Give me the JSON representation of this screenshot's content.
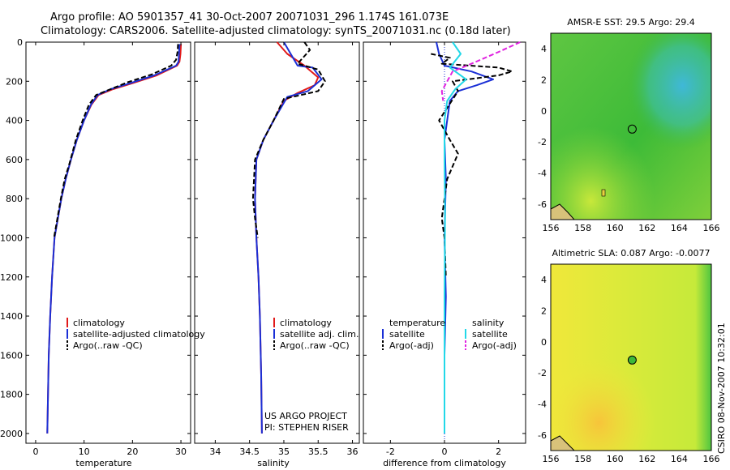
{
  "figure": {
    "title_line1": "Argo profile: AO 5901357_41 30-Oct-2007 20071031_296 1.174S 161.073E",
    "title_line2": "Climatology: CARS2006. Satellite-adjusted climatology: synTS_20071031.nc (0.18d later)",
    "credit": "CSIRO 08-Nov-2007 10:32:01",
    "project_line1": "US ARGO PROJECT",
    "project_line2": "PI: STEPHEN RISER"
  },
  "colors": {
    "climatology": "#e11a1a",
    "satellite": "#1a2fd6",
    "argo": "#000000",
    "satellite_salinity": "#22d8e8",
    "argo_salinity": "#e024e0"
  },
  "chart_data": [
    {
      "id": "temperature",
      "type": "line",
      "xlabel": "temperature",
      "ylabel": "",
      "xlim": [
        -2,
        32
      ],
      "ylim": [
        2050,
        0
      ],
      "xticks": [
        0,
        10,
        20,
        30
      ],
      "yticks": [
        0,
        200,
        400,
        600,
        800,
        1000,
        1200,
        1400,
        1600,
        1800,
        2000
      ],
      "legend": [
        "climatology",
        "satellite-adjusted climatology",
        "Argo(..raw -QC)"
      ],
      "series": [
        {
          "name": "climatology",
          "style": "solid",
          "color": "climatology",
          "x": [
            30.0,
            29.9,
            29.7,
            29.2,
            25,
            20,
            16,
            13,
            11.5,
            10,
            8.5,
            7.3,
            6.2,
            5.3,
            4.6,
            3.9,
            3.4,
            3.0,
            2.7,
            2.4
          ],
          "y": [
            10,
            60,
            100,
            120,
            170,
            210,
            240,
            270,
            320,
            400,
            500,
            600,
            700,
            800,
            900,
            1000,
            1200,
            1400,
            1600,
            2000
          ]
        },
        {
          "name": "satellite-adjusted climatology",
          "style": "solid",
          "color": "satellite",
          "x": [
            29.7,
            29.6,
            29.5,
            29.0,
            24.5,
            19.5,
            15.5,
            12.8,
            11.4,
            10,
            8.5,
            7.3,
            6.2,
            5.3,
            4.6,
            3.9,
            3.4,
            3.0,
            2.7,
            2.4
          ],
          "y": [
            10,
            60,
            100,
            120,
            170,
            210,
            240,
            270,
            320,
            400,
            500,
            600,
            700,
            800,
            900,
            1000,
            1200,
            1400,
            1600,
            2000
          ]
        },
        {
          "name": "Argo(..raw -QC)",
          "style": "dashed",
          "color": "argo",
          "x": [
            29.4,
            29.3,
            29.0,
            28.0,
            24,
            19,
            15.5,
            12.5,
            11.0,
            9.7,
            8.3,
            7.0,
            6.0,
            5.2,
            4.5,
            3.8
          ],
          "y": [
            10,
            50,
            90,
            120,
            165,
            205,
            240,
            270,
            320,
            400,
            500,
            620,
            700,
            800,
            900,
            1000
          ]
        }
      ]
    },
    {
      "id": "salinity",
      "type": "line",
      "xlabel": "salinity",
      "ylabel": "",
      "xlim": [
        33.7,
        36.1
      ],
      "ylim": [
        2050,
        0
      ],
      "xticks": [
        34,
        34.5,
        35,
        35.5,
        36
      ],
      "yticks": [],
      "legend": [
        "climatology",
        "satellite adj. clim.",
        "Argo(..raw -QC)"
      ],
      "series": [
        {
          "name": "climatology",
          "style": "solid",
          "color": "climatology",
          "x": [
            34.9,
            35.05,
            35.3,
            35.5,
            35.45,
            35.2,
            35.0,
            34.85,
            34.7,
            34.6,
            34.58,
            34.6,
            34.63,
            34.65,
            34.67,
            34.68
          ],
          "y": [
            0,
            60,
            120,
            180,
            220,
            260,
            300,
            400,
            500,
            600,
            800,
            1000,
            1200,
            1400,
            1700,
            2000
          ]
        },
        {
          "name": "satellite adj. clim.",
          "style": "solid",
          "color": "satellite",
          "x": [
            35.0,
            35.1,
            35.2,
            35.42,
            35.55,
            35.35,
            35.05,
            34.85,
            34.7,
            34.6,
            34.58,
            34.6,
            34.63,
            34.65,
            34.67,
            34.68
          ],
          "y": [
            0,
            60,
            120,
            130,
            190,
            250,
            280,
            400,
            500,
            600,
            800,
            1000,
            1200,
            1400,
            1700,
            2000
          ]
        },
        {
          "name": "Argo(..raw -QC)",
          "style": "dashed",
          "color": "argo",
          "x": [
            35.3,
            35.38,
            35.2,
            35.5,
            35.6,
            35.5,
            35.0,
            34.85,
            34.7,
            34.58,
            34.55,
            34.58,
            34.62
          ],
          "y": [
            0,
            40,
            110,
            140,
            200,
            250,
            290,
            400,
            500,
            600,
            800,
            900,
            1000
          ]
        }
      ]
    },
    {
      "id": "difference",
      "type": "line",
      "xlabel": "difference from climatology",
      "ylabel": "",
      "xlim": [
        -3,
        3
      ],
      "ylim": [
        2050,
        0
      ],
      "xticks": [
        -2,
        0,
        2
      ],
      "yticks": [],
      "legend_temperature_title": "temperature",
      "legend_salinity_title": "salinity",
      "legend": [
        "satellite",
        "Argo(-adj)",
        "satellite",
        "Argo(-adj)"
      ],
      "series": [
        {
          "name": "temperature satellite",
          "style": "solid",
          "color": "satellite",
          "x": [
            -0.3,
            -0.2,
            0.0,
            1.0,
            1.8,
            1.2,
            0.5,
            0.2,
            0.1,
            0.0,
            0.05,
            0.0,
            0.05,
            0.0,
            0.0
          ],
          "y": [
            0,
            60,
            120,
            150,
            190,
            220,
            250,
            300,
            400,
            500,
            700,
            1000,
            1300,
            1600,
            2000
          ]
        },
        {
          "name": "temperature Argo(-adj)",
          "style": "dashed",
          "color": "argo",
          "x": [
            -0.5,
            0.2,
            -0.1,
            2.0,
            2.5,
            2.0,
            0.3,
            0.5,
            -0.2,
            0.2,
            0.5,
            0.1,
            -0.1,
            0.0,
            0.05
          ],
          "y": [
            60,
            80,
            110,
            130,
            150,
            170,
            200,
            250,
            400,
            500,
            570,
            700,
            900,
            1000,
            1200
          ]
        },
        {
          "name": "salinity satellite",
          "style": "solid",
          "color": "satellite_salinity",
          "x": [
            0.3,
            0.6,
            0.2,
            0.8,
            0.4,
            0.1,
            0.0,
            0.0,
            0.02,
            0.0,
            0.0
          ],
          "y": [
            0,
            60,
            130,
            190,
            240,
            300,
            400,
            600,
            900,
            1300,
            2000
          ]
        },
        {
          "name": "salinity Argo(-adj)",
          "style": "dashed",
          "color": "argo_salinity",
          "x": [
            2.8,
            2.0,
            1.0,
            0.3,
            -0.1,
            -0.05
          ],
          "y": [
            0,
            50,
            110,
            150,
            250,
            300
          ]
        }
      ]
    },
    {
      "id": "sst_map",
      "type": "heatmap",
      "title": "AMSR-E SST: 29.5 Argo: 29.4",
      "xlim": [
        156,
        166
      ],
      "ylim": [
        -7,
        5
      ],
      "xticks": [
        156,
        158,
        160,
        162,
        164,
        166
      ],
      "yticks": [
        4,
        2,
        0,
        -2,
        -4,
        -6
      ],
      "profile_point": [
        161.07,
        -1.17
      ]
    },
    {
      "id": "sla_map",
      "type": "heatmap",
      "title": "Altimetric SLA: 0.087 Argo: -0.0077",
      "xlim": [
        156,
        166
      ],
      "ylim": [
        -7,
        5
      ],
      "xticks": [
        156,
        158,
        160,
        162,
        164,
        166
      ],
      "yticks": [
        4,
        2,
        0,
        -2,
        -4,
        -6
      ],
      "profile_point": [
        161.07,
        -1.17
      ]
    }
  ]
}
